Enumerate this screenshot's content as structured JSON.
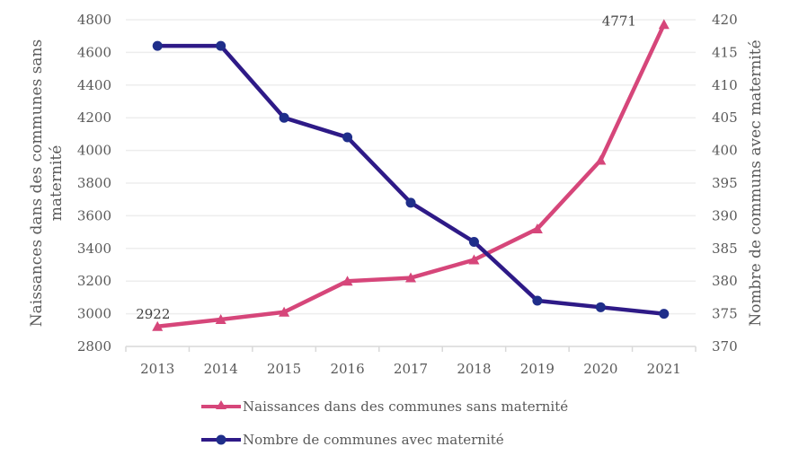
{
  "chart_data": {
    "type": "line",
    "title": "",
    "x": [
      "2013",
      "2014",
      "2015",
      "2016",
      "2017",
      "2018",
      "2019",
      "2020",
      "2021"
    ],
    "xlabel": "",
    "ylabel": "Naissances dans des communes sans maternité",
    "ylabel_lines": [
      "Naissances dans des communes sans",
      "maternité"
    ],
    "y2label": "Nombre de communs avec maternité",
    "ylim": [
      2800,
      4800
    ],
    "y_ticks": [
      2800,
      3000,
      3200,
      3400,
      3600,
      3800,
      4000,
      4200,
      4400,
      4600,
      4800
    ],
    "y2lim": [
      370,
      420
    ],
    "y2_ticks": [
      370,
      375,
      380,
      385,
      390,
      395,
      400,
      405,
      410,
      415,
      420
    ],
    "grid": true,
    "legend_position": "bottom",
    "series": [
      {
        "name": "Naissances dans des communes sans maternité",
        "axis": "left",
        "color": "#D6467A",
        "marker": "triangle",
        "values": [
          2922,
          2965,
          3010,
          3200,
          3220,
          3330,
          3520,
          3940,
          4771
        ],
        "data_labels": [
          {
            "index": 0,
            "text": "2922"
          },
          {
            "index": 8,
            "text": "4771"
          }
        ]
      },
      {
        "name": "Nombre de communes avec maternité",
        "axis": "right",
        "color": "#2E1A87",
        "marker_color": "#1F2E8A",
        "marker": "circle",
        "values": [
          416,
          416,
          405,
          402,
          392,
          386,
          377,
          376,
          375
        ],
        "data_labels": []
      }
    ]
  }
}
